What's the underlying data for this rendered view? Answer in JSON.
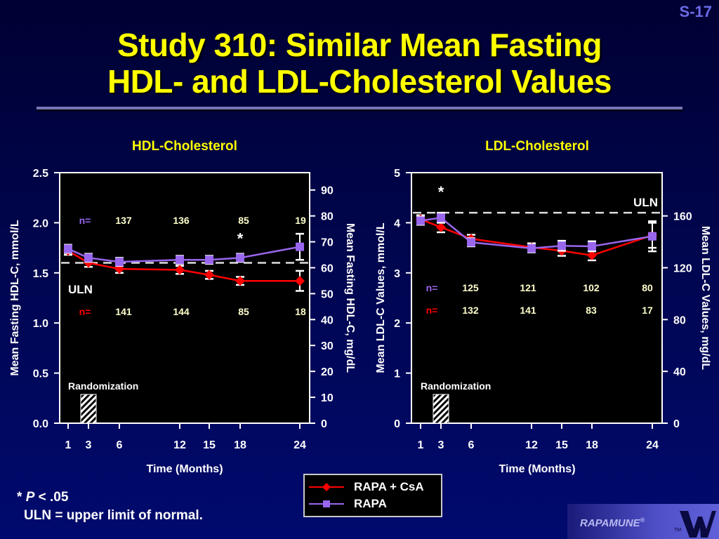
{
  "slide": {
    "number": "S-17",
    "title_line1": "Study 310: Similar Mean Fasting",
    "title_line2": "HDL- and LDL-Cholesterol Values"
  },
  "footnote": {
    "star_text": "* ",
    "p_text": "P",
    "p_rest": " < .05",
    "uln_text": "ULN = upper limit of normal."
  },
  "legend": {
    "items": [
      {
        "label": "RAPA + CsA",
        "color": "#ff0000",
        "marker": "diamond"
      },
      {
        "label": "RAPA",
        "color": "#9966ee",
        "marker": "square"
      }
    ]
  },
  "brand": {
    "name": "RAPAMUNE",
    "registered": "®",
    "tm": "TM"
  },
  "colors": {
    "rapa_csa": "#ff0000",
    "rapa": "#9966ee",
    "title": "#ffff00",
    "n_rapa": "#9966ee",
    "n_csa": "#ff0000"
  },
  "chart_data": [
    {
      "type": "line",
      "title": "HDL-Cholesterol",
      "xlabel": "Time (Months)",
      "ylabel": "Mean Fasting HDL-C, mmol/L",
      "ylabel_right": "Mean Fasting HDL-C, mg/dL",
      "x": [
        1,
        3,
        6,
        12,
        15,
        18,
        24
      ],
      "x_ticks": [
        "1",
        "3",
        "6",
        "12",
        "15",
        "18",
        "24"
      ],
      "ylim": [
        0,
        2.5
      ],
      "y_ticks": [
        "0.0",
        "0.5",
        "1.0",
        "1.5",
        "2.0",
        "2.5"
      ],
      "y_tick_values": [
        0,
        0.5,
        1.0,
        1.5,
        2.0,
        2.5
      ],
      "ylim_right": [
        0,
        96.7
      ],
      "y_ticks_right": [
        "0",
        "10",
        "20",
        "30",
        "40",
        "50",
        "60",
        "70",
        "80",
        "90"
      ],
      "y_tick_values_right": [
        0,
        10,
        20,
        30,
        40,
        50,
        60,
        70,
        80,
        90
      ],
      "uln": 1.6,
      "uln_label": "ULN",
      "randomization_label": "Randomization",
      "randomization_month": 3,
      "significance_marker": {
        "text": "*",
        "x": 18
      },
      "series": [
        {
          "name": "RAPA + CsA",
          "color": "#ff0000",
          "marker": "diamond",
          "values": [
            1.72,
            1.6,
            1.54,
            1.53,
            1.48,
            1.42,
            1.42
          ],
          "errors": [
            0.04,
            0.04,
            0.04,
            0.04,
            0.04,
            0.04,
            0.1
          ]
        },
        {
          "name": "RAPA",
          "color": "#9966ee",
          "marker": "square",
          "values": [
            1.74,
            1.65,
            1.61,
            1.63,
            1.63,
            1.65,
            1.76
          ],
          "errors": [
            0.04,
            0.04,
            0.04,
            0.04,
            0.04,
            0.04,
            0.13
          ]
        }
      ],
      "n_rows": [
        {
          "label": "n=",
          "color": "#9966ee",
          "values": [
            "137",
            "136",
            "85",
            "19"
          ]
        },
        {
          "label": "n=",
          "color": "#ff0000",
          "values": [
            "141",
            "144",
            "85",
            "18"
          ]
        }
      ]
    },
    {
      "type": "line",
      "title": "LDL-Cholesterol",
      "xlabel": "Time (Months)",
      "ylabel": "Mean LDL-C Values, mmol/L",
      "ylabel_right": "Mean LDL-C Values, mg/dL",
      "x": [
        1,
        3,
        6,
        12,
        15,
        18,
        24
      ],
      "x_ticks": [
        "1",
        "3",
        "6",
        "12",
        "15",
        "18",
        "24"
      ],
      "ylim": [
        0,
        5
      ],
      "y_ticks": [
        "0",
        "1",
        "2",
        "3",
        "4",
        "5"
      ],
      "y_tick_values": [
        0,
        1,
        2,
        3,
        4,
        5
      ],
      "ylim_right": [
        0,
        193.4
      ],
      "y_ticks_right": [
        "0",
        "40",
        "80",
        "120",
        "160"
      ],
      "y_tick_values_right": [
        0,
        40,
        80,
        120,
        160
      ],
      "uln": 4.2,
      "uln_label": "ULN",
      "randomization_label": "Randomization",
      "randomization_month": 3,
      "significance_marker": {
        "text": "*",
        "x": 3
      },
      "series": [
        {
          "name": "RAPA + CsA",
          "color": "#ff0000",
          "marker": "diamond",
          "values": [
            4.07,
            3.91,
            3.68,
            3.51,
            3.44,
            3.35,
            3.75
          ],
          "errors": [
            0.08,
            0.1,
            0.08,
            0.08,
            0.1,
            0.1,
            0.25
          ]
        },
        {
          "name": "RAPA",
          "color": "#9966ee",
          "marker": "square",
          "values": [
            4.04,
            4.1,
            3.61,
            3.49,
            3.54,
            3.53,
            3.73
          ],
          "errors": [
            0.08,
            0.1,
            0.08,
            0.08,
            0.1,
            0.1,
            0.3
          ]
        }
      ],
      "n_rows": [
        {
          "label": "n=",
          "color": "#9966ee",
          "values": [
            "125",
            "121",
            "102",
            "80"
          ]
        },
        {
          "label": "n=",
          "color": "#ff0000",
          "values": [
            "132",
            "141",
            "83",
            "17"
          ]
        }
      ]
    }
  ]
}
